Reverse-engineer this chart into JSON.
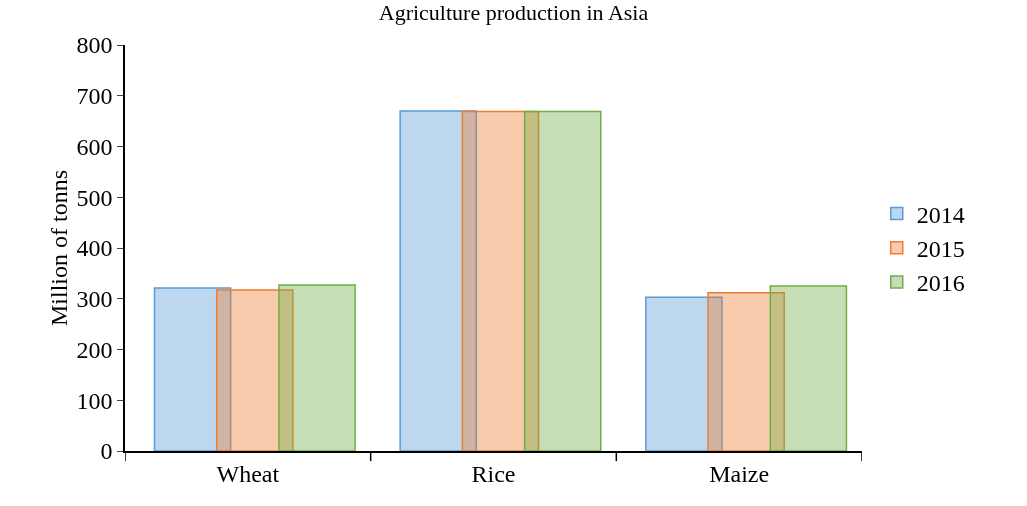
{
  "chart_data": {
    "type": "bar",
    "title": "Agriculture production in Asia",
    "ylabel": "Million of tonns",
    "categories": [
      "Wheat",
      "Rice",
      "Maize"
    ],
    "series": [
      {
        "name": "2014",
        "color": "#5b9bd5",
        "values": [
          321,
          670,
          303
        ]
      },
      {
        "name": "2015",
        "color": "#ed7d31",
        "values": [
          317,
          669,
          312
        ]
      },
      {
        "name": "2016",
        "color": "#70ad47",
        "values": [
          327,
          669,
          325
        ]
      }
    ],
    "ylim": [
      0,
      800
    ],
    "yticks": [
      0,
      100,
      200,
      300,
      400,
      500,
      600,
      700,
      800
    ],
    "grid": false,
    "legend": "right"
  }
}
